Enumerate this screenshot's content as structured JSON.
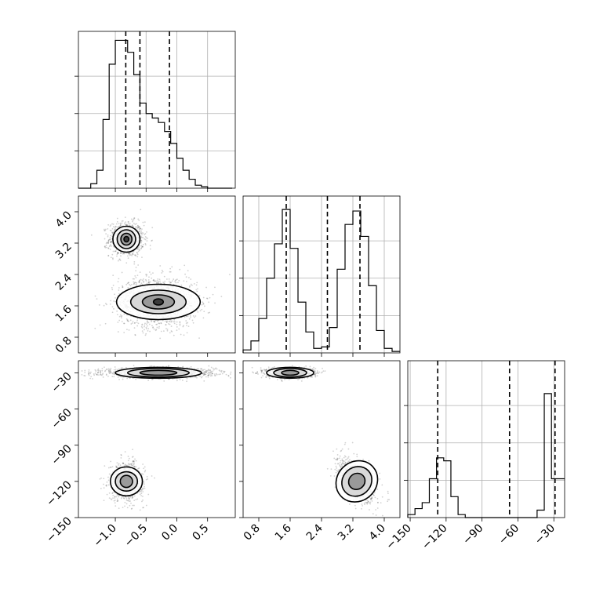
{
  "chart_data": [
    {
      "panel": "hist-x",
      "type": "bar",
      "x_ticks": [
        -1.0,
        -0.5,
        0.0,
        0.5
      ],
      "x_tick_labels": [
        "−1.0",
        "−0.5",
        "0.0",
        "0.5"
      ],
      "xlim": [
        -1.6,
        0.95
      ],
      "ylim": [
        0,
        1
      ],
      "edges": [
        -1.6,
        -1.5,
        -1.4,
        -1.3,
        -1.2,
        -1.1,
        -1.0,
        -0.9,
        -0.8,
        -0.7,
        -0.6,
        -0.5,
        -0.4,
        -0.3,
        -0.2,
        -0.1,
        0.0,
        0.1,
        0.2,
        0.3,
        0.4,
        0.5,
        0.6,
        0.7,
        0.8,
        0.9
      ],
      "values": [
        0,
        0,
        0.03,
        0.12,
        0.46,
        0.83,
        0.99,
        0.99,
        0.91,
        0.76,
        0.57,
        0.5,
        0.47,
        0.44,
        0.38,
        0.3,
        0.2,
        0.12,
        0.06,
        0.02,
        0.01,
        0,
        0,
        0,
        0
      ],
      "quantiles": [
        -0.83,
        -0.6,
        -0.12
      ]
    },
    {
      "panel": "scatter-y-vs-x",
      "type": "scatter",
      "xlim": [
        -1.6,
        0.95
      ],
      "ylim": [
        0.4,
        4.4
      ],
      "y_ticks": [
        0.8,
        1.6,
        2.4,
        3.2,
        4.0
      ],
      "y_tick_labels": [
        "0.8",
        "1.6",
        "2.4",
        "3.2",
        "4.0"
      ],
      "clusters": [
        {
          "center": [
            -0.82,
            3.3
          ],
          "spread": [
            0.14,
            0.22
          ],
          "points": 900,
          "contours": [
            [
              0.22,
              0.33
            ],
            [
              0.15,
              0.24
            ],
            [
              0.09,
              0.15
            ],
            [
              0.04,
              0.07
            ]
          ]
        },
        {
          "center": [
            -0.3,
            1.7
          ],
          "spread": [
            0.32,
            0.32
          ],
          "points": 1500,
          "contours": [
            [
              0.68,
              0.45
            ],
            [
              0.45,
              0.3
            ],
            [
              0.26,
              0.18
            ],
            [
              0.08,
              0.08
            ]
          ]
        }
      ]
    },
    {
      "panel": "hist-y",
      "type": "bar",
      "x_ticks": [
        0.8,
        1.6,
        2.4,
        3.2,
        4.0
      ],
      "x_tick_labels": [
        "0.8",
        "1.6",
        "2.4",
        "3.2",
        "4.0"
      ],
      "xlim": [
        0.4,
        4.4
      ],
      "ylim": [
        0,
        1
      ],
      "edges": [
        0.4,
        0.6,
        0.8,
        1.0,
        1.2,
        1.4,
        1.6,
        1.8,
        2.0,
        2.2,
        2.4,
        2.6,
        2.8,
        3.0,
        3.2,
        3.4,
        3.6,
        3.8,
        4.0,
        4.2,
        4.4
      ],
      "values": [
        0.02,
        0.08,
        0.23,
        0.5,
        0.73,
        0.96,
        0.7,
        0.34,
        0.14,
        0.03,
        0.04,
        0.17,
        0.56,
        0.86,
        0.95,
        0.78,
        0.45,
        0.15,
        0.03,
        0.01
      ],
      "quantiles": [
        1.5,
        2.55,
        3.38
      ]
    },
    {
      "panel": "scatter-z-vs-x",
      "type": "scatter",
      "xlim": [
        -1.6,
        0.95
      ],
      "ylim": [
        -150,
        -20
      ],
      "y_ticks": [
        -150,
        -120,
        -90,
        -60,
        -30
      ],
      "y_tick_labels": [
        "−150",
        "−120",
        "−90",
        "−60",
        "−30"
      ],
      "clusters": [
        {
          "center": [
            -0.3,
            -30
          ],
          "spread": [
            0.45,
            2.0
          ],
          "points": 1400,
          "contours": [
            [
              0.7,
              4.5
            ],
            [
              0.5,
              3.5
            ],
            [
              0.3,
              2.0
            ]
          ]
        },
        {
          "center": [
            -0.82,
            -120
          ],
          "spread": [
            0.14,
            8.0
          ],
          "points": 800,
          "contours": [
            [
              0.26,
              12
            ],
            [
              0.18,
              8
            ],
            [
              0.1,
              5
            ]
          ]
        }
      ]
    },
    {
      "panel": "scatter-z-vs-y",
      "type": "scatter",
      "xlim": [
        0.4,
        4.4
      ],
      "ylim": [
        -150,
        -20
      ],
      "clusters": [
        {
          "center": [
            1.6,
            -30
          ],
          "spread": [
            0.3,
            2.0
          ],
          "points": 1100,
          "contours": [
            [
              0.6,
              4.5
            ],
            [
              0.42,
              3.5
            ],
            [
              0.22,
              2.0
            ]
          ]
        },
        {
          "center": [
            3.3,
            -120
          ],
          "spread": [
            0.25,
            8.0
          ],
          "points": 900,
          "contours": [
            [
              0.5,
              18,
              -0.55
            ],
            [
              0.36,
              13,
              -0.55
            ],
            [
              0.2,
              7,
              -0.55
            ]
          ]
        }
      ]
    },
    {
      "panel": "hist-z",
      "type": "bar",
      "x_ticks": [
        -150,
        -120,
        -90,
        -60,
        -30
      ],
      "x_tick_labels": [
        "−150",
        "−120",
        "−90",
        "−60",
        "−30"
      ],
      "xlim": [
        -152,
        -21
      ],
      "ylim": [
        0,
        1
      ],
      "edges": [
        -152,
        -146,
        -140,
        -134,
        -128,
        -122,
        -116,
        -110,
        -104,
        -98,
        -92,
        -86,
        -80,
        -74,
        -68,
        -62,
        -56,
        -50,
        -44,
        -38,
        -32,
        -26,
        -21
      ],
      "values": [
        0.02,
        0.06,
        0.1,
        0.26,
        0.4,
        0.38,
        0.14,
        0.02,
        0,
        0,
        0,
        0,
        0,
        0,
        0,
        0,
        0,
        0,
        0.05,
        0.83,
        0.26,
        0.26
      ],
      "quantiles": [
        -127,
        -67,
        -29
      ]
    }
  ]
}
